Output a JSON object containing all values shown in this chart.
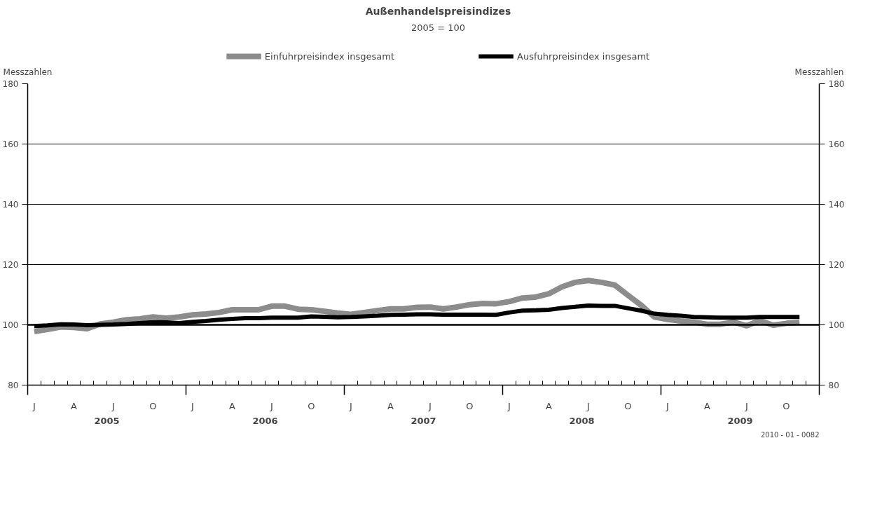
{
  "chart_data": {
    "type": "line",
    "title": "Außenhandelspreisindizes",
    "subtitle": "2005 = 100",
    "ylabel": "Messzahlen",
    "y2label": "Messzahlen",
    "categories": [
      "J",
      null,
      null,
      "A",
      null,
      null,
      "J",
      null,
      null,
      "O",
      null,
      null,
      "J",
      null,
      null,
      "A",
      null,
      null,
      "J",
      null,
      null,
      "O",
      null,
      null,
      "J",
      null,
      null,
      "A",
      null,
      null,
      "J",
      null,
      null,
      "O",
      null,
      null,
      "J",
      null,
      null,
      "A",
      null,
      null,
      "J",
      null,
      null,
      "O",
      null,
      null,
      "J",
      null,
      null,
      "A",
      null,
      null,
      "J",
      null,
      null,
      "O",
      null,
      null
    ],
    "series": [
      {
        "name": "Einfuhrpreisindex insgesamt",
        "color": "#8c8c8c",
        "values": [
          97.8,
          98.5,
          99.3,
          99.1,
          98.7,
          100.3,
          100.9,
          101.7,
          102.0,
          102.6,
          102.2,
          102.6,
          103.3,
          103.6,
          104.1,
          105.0,
          105.0,
          105.0,
          106.2,
          106.2,
          105.2,
          105.0,
          104.5,
          103.9,
          103.5,
          104.1,
          104.7,
          105.3,
          105.3,
          105.8,
          105.9,
          105.3,
          105.9,
          106.7,
          107.1,
          107.0,
          107.7,
          108.9,
          109.2,
          110.3,
          112.6,
          114.1,
          114.7,
          114.1,
          113.2,
          109.8,
          106.5,
          102.6,
          101.8,
          101.3,
          100.9,
          100.2,
          100.2,
          100.9,
          99.7,
          101.4,
          99.9,
          100.5,
          100.8,
          null
        ]
      },
      {
        "name": "Ausfuhrpreisindex insgesamt",
        "color": "#000000",
        "values": [
          99.6,
          99.8,
          100.2,
          100.1,
          99.9,
          100.0,
          100.1,
          100.3,
          100.6,
          100.9,
          100.8,
          100.6,
          101.0,
          101.3,
          101.7,
          102.0,
          102.2,
          102.2,
          102.4,
          102.4,
          102.4,
          102.8,
          102.7,
          102.5,
          102.6,
          102.8,
          103.0,
          103.3,
          103.4,
          103.5,
          103.5,
          103.4,
          103.4,
          103.4,
          103.4,
          103.3,
          104.1,
          104.7,
          104.8,
          105.0,
          105.6,
          106.0,
          106.4,
          106.3,
          106.3,
          105.5,
          104.7,
          103.7,
          103.3,
          103.0,
          102.6,
          102.5,
          102.4,
          102.4,
          102.4,
          102.6,
          102.6,
          102.6,
          102.6,
          null
        ]
      }
    ],
    "ylim": [
      80,
      180
    ],
    "yticks": [
      80,
      100,
      120,
      140,
      160,
      180
    ],
    "y2lim": [
      80,
      180
    ],
    "y2ticks": [
      80,
      100,
      120,
      140,
      160,
      180
    ],
    "ref_lines": [
      {
        "axis": "y",
        "value": 100,
        "label": null,
        "color": "#000000"
      }
    ],
    "annotations": [
      "2005",
      "2006",
      "2007",
      "2008",
      "2009",
      "2010 - 01 - 0082"
    ],
    "grid": "y",
    "legend": "top",
    "line_style": "solid",
    "marker": "none"
  }
}
